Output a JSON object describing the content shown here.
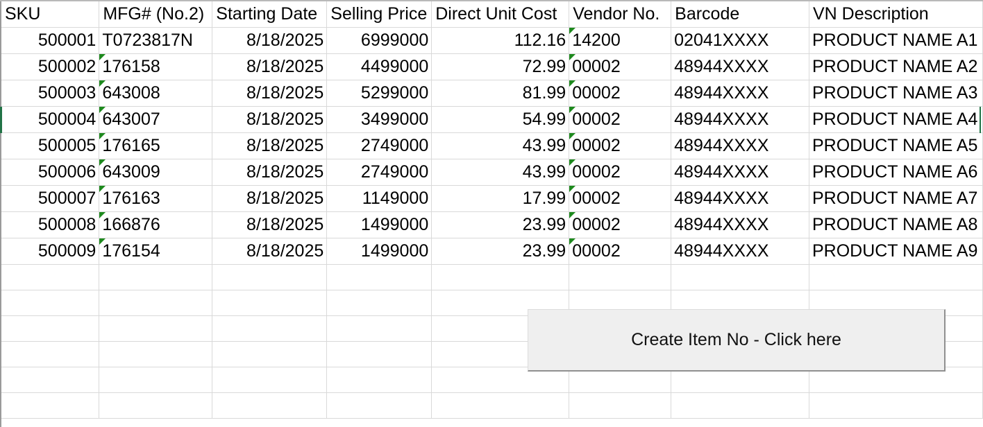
{
  "headers": [
    "SKU",
    "MFG# (No.2)",
    "Starting Date",
    "Selling Price",
    "Direct Unit Cost",
    "Vendor No.",
    "Barcode",
    "VN Description"
  ],
  "rows": [
    [
      "500001",
      "T0723817N",
      "8/18/2025",
      "6999000",
      "112.16",
      "14200",
      "02041XXXX",
      "PRODUCT NAME A1"
    ],
    [
      "500002",
      "176158",
      "8/18/2025",
      "4499000",
      "72.99",
      "00002",
      "48944XXXX",
      "PRODUCT NAME A2"
    ],
    [
      "500003",
      "643008",
      "8/18/2025",
      "5299000",
      "81.99",
      "00002",
      "48944XXXX",
      "PRODUCT NAME A3"
    ],
    [
      "500004",
      "643007",
      "8/18/2025",
      "3499000",
      "54.99",
      "00002",
      "48944XXXX",
      "PRODUCT NAME A4"
    ],
    [
      "500005",
      "176165",
      "8/18/2025",
      "2749000",
      "43.99",
      "00002",
      "48944XXXX",
      "PRODUCT NAME A5"
    ],
    [
      "500006",
      "643009",
      "8/18/2025",
      "2749000",
      "43.99",
      "00002",
      "48944XXXX",
      "PRODUCT NAME A6"
    ],
    [
      "500007",
      "176163",
      "8/18/2025",
      "1149000",
      "17.99",
      "00002",
      "48944XXXX",
      "PRODUCT NAME A7"
    ],
    [
      "500008",
      "166876",
      "8/18/2025",
      "1499000",
      "23.99",
      "00002",
      "48944XXXX",
      "PRODUCT NAME A8"
    ],
    [
      "500009",
      "176154",
      "8/18/2025",
      "1499000",
      "23.99",
      "00002",
      "48944XXXX",
      "PRODUCT NAME A9"
    ]
  ],
  "macro_button": {
    "label": "Create Item No - Click here"
  },
  "colors": {
    "gridline": "#d9d9d9",
    "error_indicator": "#1e8a1e",
    "selection": "#217346",
    "button_face": "#efefef"
  }
}
